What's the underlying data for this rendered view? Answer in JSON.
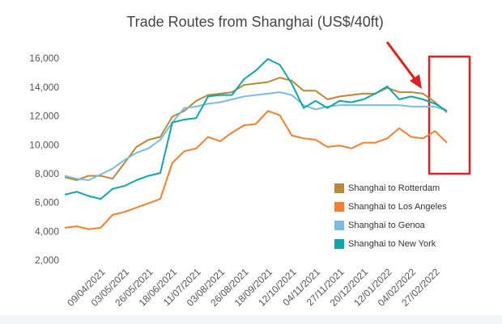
{
  "chart_data": {
    "type": "line",
    "title": "Trade Routes from Shanghai (US$/40ft)",
    "categories": [
      null,
      null,
      null,
      "09/04/2021",
      null,
      "03/05/2021",
      null,
      "26/05/2021",
      null,
      "18/06/2021",
      null,
      "11/07/2021",
      null,
      "03/08/2021",
      null,
      "26/08/2021",
      null,
      "18/09/2021",
      null,
      "12/10/2021",
      null,
      "04/11/2021",
      null,
      "27/11/2021",
      null,
      "20/12/2021",
      null,
      "12/01/2022",
      null,
      "04/02/2022",
      null,
      "27/02/2022",
      null
    ],
    "series": [
      {
        "name": "Shanghai to Rotterdam",
        "color": "#b8893b",
        "values": [
          7800,
          7600,
          7900,
          7900,
          7700,
          8800,
          9900,
          10400,
          10600,
          12000,
          12400,
          13100,
          13500,
          13600,
          13700,
          14200,
          14300,
          14400,
          14700,
          14500,
          13800,
          13800,
          13200,
          13400,
          13500,
          13600,
          13600,
          14000,
          13700,
          13700,
          13600,
          13000,
          12300
        ]
      },
      {
        "name": "Shanghai to Los Angeles",
        "color": "#f28030",
        "values": [
          4300,
          4400,
          4200,
          4300,
          5200,
          5400,
          5700,
          6000,
          6300,
          8800,
          9600,
          9800,
          10600,
          10300,
          10900,
          11400,
          11500,
          12400,
          12100,
          10700,
          10500,
          10400,
          9900,
          10000,
          9800,
          10200,
          10200,
          10500,
          11200,
          10600,
          10500,
          11000,
          10200
        ]
      },
      {
        "name": "Shanghai to Genoa",
        "color": "#78bde2",
        "values": [
          7900,
          7700,
          7600,
          8000,
          8400,
          9000,
          9500,
          9800,
          10400,
          11600,
          12600,
          12700,
          12900,
          13000,
          13200,
          13400,
          13500,
          13600,
          13700,
          13500,
          12800,
          12500,
          12700,
          12800,
          12800,
          12800,
          12800,
          12800,
          12800,
          12700,
          12700,
          12700,
          12400
        ]
      },
      {
        "name": "Shanghai to New York",
        "color": "#12a5a6",
        "values": [
          6600,
          6800,
          6500,
          6300,
          7000,
          7200,
          7600,
          7900,
          8100,
          11600,
          11800,
          11900,
          13400,
          13500,
          13500,
          14600,
          15200,
          16000,
          15600,
          14300,
          12600,
          13100,
          12600,
          13100,
          13000,
          13200,
          13600,
          14100,
          13200,
          13400,
          13200,
          12900,
          12400
        ]
      }
    ],
    "ylim": [
      2000,
      16000
    ],
    "yticks": [
      {
        "value": 2000,
        "label": "2,000"
      },
      {
        "value": 4000,
        "label": "4,000"
      },
      {
        "value": 6000,
        "label": "6,000"
      },
      {
        "value": 8000,
        "label": "8,000"
      },
      {
        "value": 10000,
        "label": "10,000"
      },
      {
        "value": 12000,
        "label": "12,000"
      },
      {
        "value": 14000,
        "label": "14,000"
      },
      {
        "value": 16000,
        "label": "16,000"
      }
    ],
    "grid": false
  }
}
